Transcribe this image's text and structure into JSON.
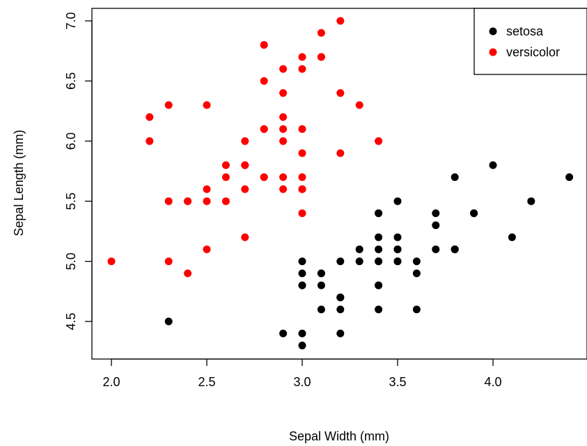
{
  "chart_data": {
    "type": "scatter",
    "title": "",
    "xlabel": "Sepal Width (mm)",
    "ylabel": "Sepal Length (mm)",
    "xlim": [
      2.0,
      4.4
    ],
    "ylim": [
      4.3,
      7.0
    ],
    "xticks": [
      "2.0",
      "2.5",
      "3.0",
      "3.5",
      "4.0"
    ],
    "yticks": [
      "4.5",
      "5.0",
      "5.5",
      "6.0",
      "6.5",
      "7.0"
    ],
    "grid": false,
    "legend_position": "top-right",
    "series": [
      {
        "name": "setosa",
        "color": "#000000",
        "points": [
          [
            3.5,
            5.1
          ],
          [
            3.0,
            4.9
          ],
          [
            3.2,
            4.7
          ],
          [
            3.1,
            4.6
          ],
          [
            3.6,
            5.0
          ],
          [
            3.9,
            5.4
          ],
          [
            3.4,
            4.6
          ],
          [
            3.4,
            5.0
          ],
          [
            2.9,
            4.4
          ],
          [
            3.1,
            4.9
          ],
          [
            3.7,
            5.4
          ],
          [
            3.4,
            4.8
          ],
          [
            3.0,
            4.8
          ],
          [
            3.0,
            4.3
          ],
          [
            4.0,
            5.8
          ],
          [
            4.4,
            5.7
          ],
          [
            3.9,
            5.4
          ],
          [
            3.5,
            5.1
          ],
          [
            3.8,
            5.7
          ],
          [
            3.8,
            5.1
          ],
          [
            3.4,
            5.4
          ],
          [
            3.7,
            5.1
          ],
          [
            3.6,
            4.6
          ],
          [
            3.3,
            5.1
          ],
          [
            3.4,
            4.8
          ],
          [
            3.0,
            5.0
          ],
          [
            3.4,
            5.0
          ],
          [
            3.5,
            5.2
          ],
          [
            3.4,
            5.2
          ],
          [
            3.2,
            4.7
          ],
          [
            3.1,
            4.8
          ],
          [
            3.4,
            5.4
          ],
          [
            4.1,
            5.2
          ],
          [
            4.2,
            5.5
          ],
          [
            3.1,
            4.9
          ],
          [
            3.2,
            5.0
          ],
          [
            3.5,
            5.5
          ],
          [
            3.6,
            4.9
          ],
          [
            3.0,
            4.4
          ],
          [
            3.4,
            5.1
          ],
          [
            3.5,
            5.0
          ],
          [
            2.3,
            4.5
          ],
          [
            3.2,
            4.4
          ],
          [
            3.5,
            5.0
          ],
          [
            3.8,
            5.1
          ],
          [
            3.0,
            4.8
          ],
          [
            3.8,
            5.1
          ],
          [
            3.2,
            4.6
          ],
          [
            3.7,
            5.3
          ],
          [
            3.3,
            5.0
          ]
        ]
      },
      {
        "name": "versicolor",
        "color": "#ff0000",
        "points": [
          [
            3.2,
            7.0
          ],
          [
            3.2,
            6.4
          ],
          [
            3.1,
            6.9
          ],
          [
            2.3,
            5.5
          ],
          [
            2.8,
            6.5
          ],
          [
            2.8,
            5.7
          ],
          [
            3.3,
            6.3
          ],
          [
            2.4,
            4.9
          ],
          [
            2.9,
            6.6
          ],
          [
            2.7,
            5.2
          ],
          [
            2.0,
            5.0
          ],
          [
            3.0,
            5.9
          ],
          [
            2.2,
            6.0
          ],
          [
            2.9,
            6.1
          ],
          [
            2.9,
            5.6
          ],
          [
            3.1,
            6.7
          ],
          [
            3.0,
            5.6
          ],
          [
            2.7,
            5.8
          ],
          [
            2.2,
            6.2
          ],
          [
            2.5,
            5.6
          ],
          [
            3.2,
            5.9
          ],
          [
            2.8,
            6.1
          ],
          [
            2.5,
            6.3
          ],
          [
            2.8,
            6.1
          ],
          [
            2.9,
            6.4
          ],
          [
            3.0,
            6.6
          ],
          [
            2.8,
            6.8
          ],
          [
            3.0,
            6.7
          ],
          [
            2.9,
            6.0
          ],
          [
            2.6,
            5.7
          ],
          [
            2.4,
            5.5
          ],
          [
            2.4,
            5.5
          ],
          [
            2.7,
            5.8
          ],
          [
            2.7,
            6.0
          ],
          [
            3.0,
            5.4
          ],
          [
            3.4,
            6.0
          ],
          [
            3.1,
            6.7
          ],
          [
            2.3,
            6.3
          ],
          [
            3.0,
            5.6
          ],
          [
            2.5,
            5.5
          ],
          [
            2.6,
            5.5
          ],
          [
            3.0,
            6.1
          ],
          [
            2.6,
            5.8
          ],
          [
            2.3,
            5.0
          ],
          [
            2.7,
            5.6
          ],
          [
            3.0,
            5.7
          ],
          [
            2.9,
            5.7
          ],
          [
            2.9,
            6.2
          ],
          [
            2.5,
            5.1
          ],
          [
            2.8,
            5.7
          ]
        ]
      }
    ]
  }
}
